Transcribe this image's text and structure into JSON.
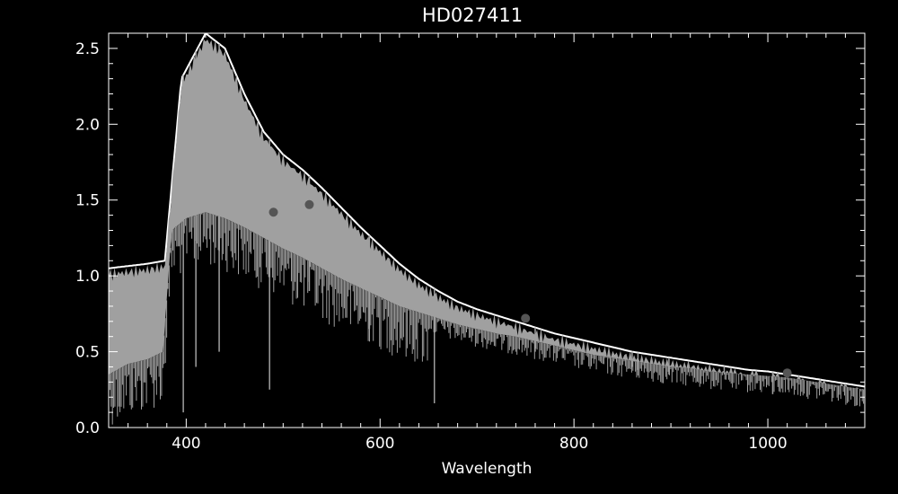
{
  "chart_data": {
    "type": "line",
    "title": "HD027411",
    "xlabel": "Wavelength",
    "ylabel": "",
    "xlim": [
      320,
      1100
    ],
    "ylim": [
      0.0,
      2.6
    ],
    "x_ticks": [
      400,
      600,
      800,
      1000
    ],
    "x_tick_labels": [
      "400",
      "600",
      "800",
      "1000"
    ],
    "y_ticks": [
      0.0,
      0.5,
      1.0,
      1.5,
      2.0,
      2.5
    ],
    "y_tick_labels": [
      "0.0",
      "0.5",
      "1.0",
      "1.5",
      "2.0",
      "2.5"
    ],
    "grid": false,
    "background": "#000000",
    "series": [
      {
        "style": "continuum-upper-envelope",
        "color": "#ffffff",
        "x": [
          320,
          360,
          378,
          395,
          420,
          440,
          460,
          480,
          500,
          520,
          540,
          560,
          580,
          600,
          620,
          640,
          660,
          680,
          700,
          720,
          740,
          760,
          780,
          800,
          820,
          840,
          860,
          880,
          900,
          920,
          940,
          960,
          980,
          1000,
          1020,
          1040,
          1060,
          1080,
          1100
        ],
        "y": [
          1.05,
          1.08,
          1.1,
          2.3,
          2.6,
          2.5,
          2.2,
          1.95,
          1.8,
          1.7,
          1.58,
          1.45,
          1.32,
          1.2,
          1.08,
          0.98,
          0.9,
          0.83,
          0.78,
          0.74,
          0.7,
          0.66,
          0.62,
          0.59,
          0.56,
          0.53,
          0.5,
          0.48,
          0.46,
          0.44,
          0.42,
          0.4,
          0.38,
          0.37,
          0.35,
          0.33,
          0.31,
          0.29,
          0.27
        ]
      },
      {
        "style": "spectrum-lower-envelope",
        "color": "#a0a0a0",
        "x": [
          320,
          340,
          360,
          376,
          385,
          400,
          420,
          440,
          460,
          480,
          500,
          520,
          540,
          560,
          580,
          600,
          620,
          640,
          660,
          680,
          700,
          720,
          740,
          760,
          780,
          800,
          820,
          840,
          860,
          880,
          900,
          920,
          940,
          960,
          980,
          1000,
          1020,
          1040,
          1060,
          1080,
          1100
        ],
        "y": [
          0.35,
          0.42,
          0.45,
          0.5,
          1.3,
          1.38,
          1.42,
          1.38,
          1.32,
          1.25,
          1.18,
          1.12,
          1.05,
          0.98,
          0.92,
          0.86,
          0.8,
          0.76,
          0.72,
          0.68,
          0.65,
          0.62,
          0.6,
          0.57,
          0.54,
          0.51,
          0.48,
          0.46,
          0.44,
          0.42,
          0.4,
          0.39,
          0.37,
          0.36,
          0.35,
          0.34,
          0.33,
          0.31,
          0.29,
          0.27,
          0.25
        ]
      }
    ],
    "absorption_lines": [
      {
        "x": 397,
        "y": 0.1
      },
      {
        "x": 410,
        "y": 0.4
      },
      {
        "x": 434,
        "y": 0.5
      },
      {
        "x": 486,
        "y": 0.25
      },
      {
        "x": 527,
        "y": 0.9
      },
      {
        "x": 589,
        "y": 0.65
      },
      {
        "x": 656,
        "y": 0.16
      },
      {
        "x": 760,
        "y": 0.5
      },
      {
        "x": 860,
        "y": 0.4
      },
      {
        "x": 866,
        "y": 0.38
      },
      {
        "x": 898,
        "y": 0.35
      },
      {
        "x": 955,
        "y": 0.35
      },
      {
        "x": 1005,
        "y": 0.22
      }
    ],
    "markers": [
      {
        "x": 490,
        "y": 1.42,
        "color": "#555555"
      },
      {
        "x": 527,
        "y": 1.47,
        "color": "#555555"
      },
      {
        "x": 750,
        "y": 0.72,
        "color": "#555555"
      },
      {
        "x": 1020,
        "y": 0.36,
        "color": "#555555"
      }
    ]
  }
}
